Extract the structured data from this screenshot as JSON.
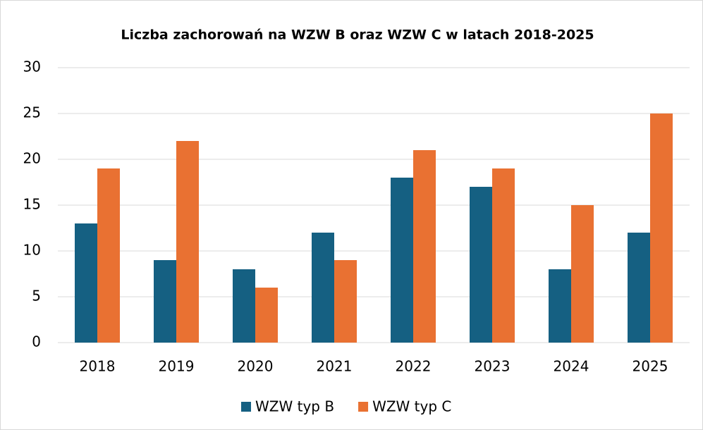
{
  "chart_data": {
    "type": "bar",
    "title": "Liczba zachorowań na WZW B oraz WZW C w latach 2018-2025",
    "categories": [
      "2018",
      "2019",
      "2020",
      "2021",
      "2022",
      "2023",
      "2024",
      "2025"
    ],
    "series": [
      {
        "name": "WZW typ B",
        "color": "#156082",
        "values": [
          13,
          9,
          8,
          12,
          18,
          17,
          8,
          12
        ]
      },
      {
        "name": "WZW typ C",
        "color": "#e97132",
        "values": [
          19,
          22,
          6,
          9,
          21,
          19,
          15,
          25
        ]
      }
    ],
    "ylim": [
      0,
      30
    ],
    "yticks": [
      0,
      5,
      10,
      15,
      20,
      25,
      30
    ],
    "grid": true,
    "legend": "bottom"
  }
}
